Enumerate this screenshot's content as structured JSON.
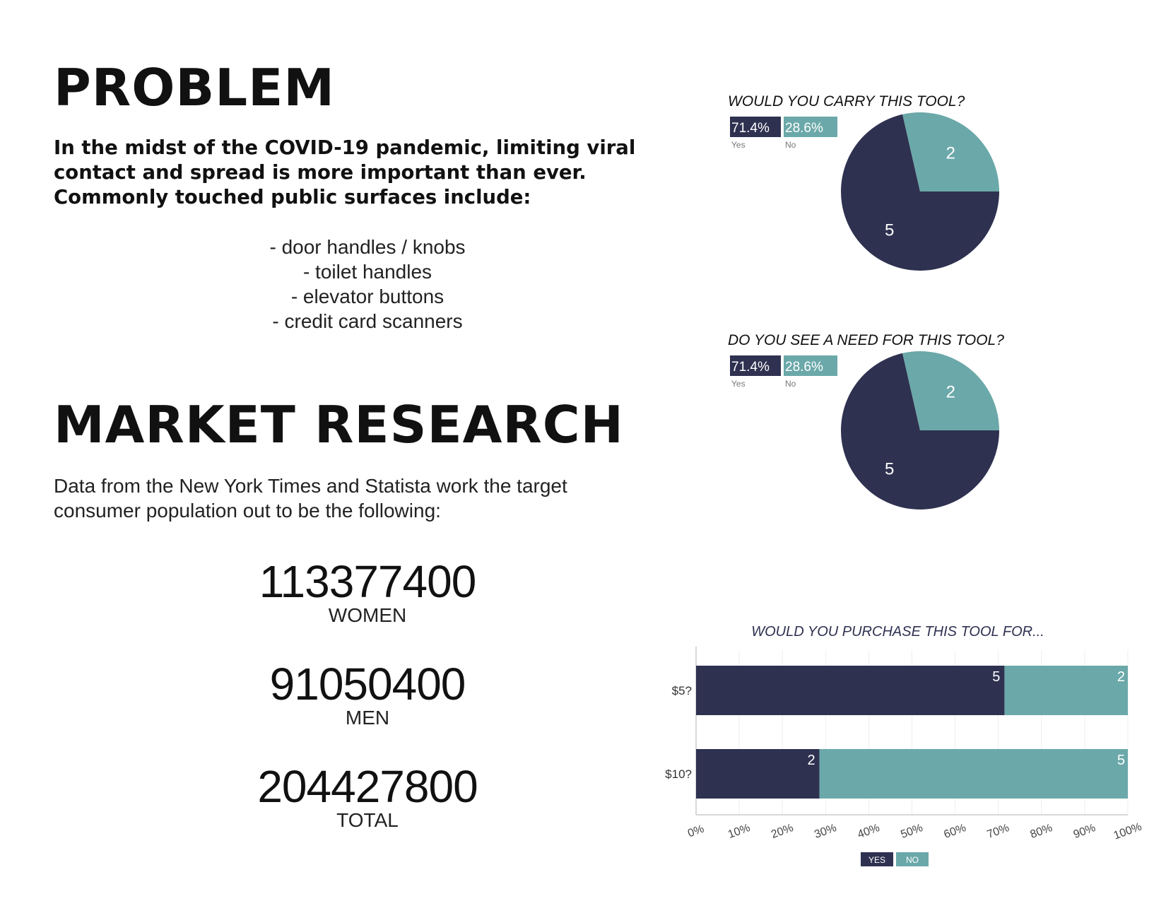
{
  "problem": {
    "title": "PROBLEM",
    "description": "In the midst of the COVID-19 pandemic, limiting viral contact and spread is more important than ever. Commonly touched public surfaces include:",
    "surfaces": [
      "- door handles / knobs",
      "- toilet handles",
      "- elevator buttons",
      "- credit card scanners"
    ]
  },
  "market": {
    "title": "MARKET RESEARCH",
    "description": "Data from the New York Times and Statista work the target consumer population out to be the following:",
    "stats": {
      "women": {
        "value": "113377400",
        "label": "WOMEN"
      },
      "men": {
        "value": "91050400",
        "label": "MEN"
      },
      "total": {
        "value": "204427800",
        "label": "TOTAL"
      }
    }
  },
  "colors": {
    "yes": "#2e3150",
    "no": "#6ba8a9"
  },
  "chart_data": [
    {
      "type": "pie",
      "title": "WOULD YOU CARRY THIS TOOL?",
      "categories": [
        "Yes",
        "No"
      ],
      "values": [
        5,
        2
      ],
      "percent_labels": [
        "71.4%",
        "28.6%"
      ],
      "value_labels": [
        "5",
        "2"
      ]
    },
    {
      "type": "pie",
      "title": "DO YOU SEE A NEED FOR THIS TOOL?",
      "categories": [
        "Yes",
        "No"
      ],
      "values": [
        5,
        2
      ],
      "percent_labels": [
        "71.4%",
        "28.6%"
      ],
      "value_labels": [
        "5",
        "2"
      ]
    },
    {
      "type": "bar",
      "orientation": "horizontal",
      "stacking": "percent",
      "title": "WOULD YOU PURCHASE THIS TOOL FOR...",
      "categories": [
        "$5?",
        "$10?"
      ],
      "series": [
        {
          "name": "YES",
          "values": [
            5,
            2
          ]
        },
        {
          "name": "NO",
          "values": [
            2,
            5
          ]
        }
      ],
      "xlim": [
        0,
        100
      ],
      "x_ticks": [
        "0%",
        "10%",
        "20%",
        "30%",
        "40%",
        "50%",
        "60%",
        "70%",
        "80%",
        "90%",
        "100%"
      ],
      "legend": "bottom",
      "grid": true
    }
  ]
}
